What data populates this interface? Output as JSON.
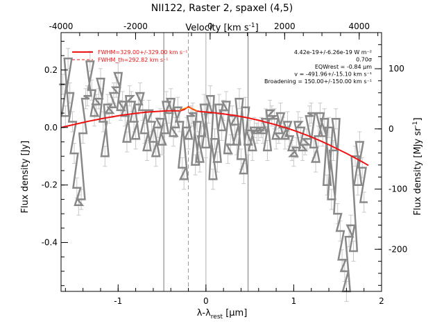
{
  "chart_data": {
    "type": "line",
    "title": "NII122, Raster 2, spaxel (4,5)",
    "xlabel": "λ-λrest [μm]",
    "xlabel_main": "λ-λ",
    "xlabel_sub": "rest",
    "xlabel_unit": " [μm]",
    "ylabel": "Flux density [Jy]",
    "top_xlabel": "Velocity [km s⁻¹]",
    "top_xlabel_main": "Velocity [km s",
    "top_xlabel_sup": "-1",
    "top_xlabel_end": "]",
    "right_ylabel": "Flux density [MJy sr⁻¹]",
    "right_ylabel_main": "Flux density [MJy sr",
    "right_ylabel_sup": "-1",
    "right_ylabel_end": "]",
    "xlim": [
      -1.65,
      2.0
    ],
    "ylim": [
      -0.57,
      0.33
    ],
    "top_xlim": [
      -4000,
      4600
    ],
    "right_ylim": [
      -270,
      160
    ],
    "xticks": [
      -1,
      0,
      1,
      2
    ],
    "yticks": [
      -0.4,
      -0.2,
      0.0,
      0.2
    ],
    "top_xticks": [
      -4000,
      -2000,
      0,
      2000,
      4000
    ],
    "right_yticks": [
      -200,
      -100,
      0,
      100
    ],
    "xtick_labels": [
      "-1",
      "0",
      "1",
      "2"
    ],
    "ytick_labels": [
      "-0.4",
      "-0.2",
      "0.0",
      "0.2"
    ],
    "top_xtick_labels": [
      "-4000",
      "-2000",
      "0",
      "2000",
      "4000"
    ],
    "right_ytick_labels": [
      "-200",
      "-100",
      "0",
      "100"
    ],
    "vertical_lines": [
      {
        "x": -0.48,
        "style": "solid",
        "color": "#777777"
      },
      {
        "x": -0.2,
        "style": "dashed",
        "color": "#999999"
      },
      {
        "x": 0.0,
        "style": "solid",
        "color": "#aaaaaa"
      },
      {
        "x": 0.48,
        "style": "solid",
        "color": "#777777"
      }
    ],
    "legend": [
      {
        "label": "FWHM=329.00+/-329.00 km s⁻¹",
        "style": "solid",
        "color": "#ee1111"
      },
      {
        "label": "FWHM_th=292.82 km s⁻¹",
        "style": "dashed",
        "color": "#ee1111"
      }
    ],
    "annotations": [
      "4.42e-19+/-6.26e-19 W m⁻²",
      "0.70σ",
      "EQWrest = -0.84 μm",
      "v = -491.96+/-15.10 km s⁻¹",
      "Broadening = 150.00+/-150.00 km s⁻¹"
    ],
    "series": [
      {
        "name": "Spectrum",
        "color": "#888888",
        "x": [
          -1.63,
          -1.6,
          -1.57,
          -1.55,
          -1.52,
          -1.5,
          -1.47,
          -1.45,
          -1.42,
          -1.4,
          -1.37,
          -1.35,
          -1.32,
          -1.3,
          -1.27,
          -1.25,
          -1.22,
          -1.2,
          -1.17,
          -1.15,
          -1.12,
          -1.1,
          -1.07,
          -1.05,
          -1.02,
          -1.0,
          -0.97,
          -0.95,
          -0.92,
          -0.9,
          -0.87,
          -0.85,
          -0.82,
          -0.8,
          -0.77,
          -0.75,
          -0.72,
          -0.7,
          -0.67,
          -0.65,
          -0.62,
          -0.6,
          -0.57,
          -0.55,
          -0.52,
          -0.5,
          -0.47,
          -0.45,
          -0.42,
          -0.4,
          -0.37,
          -0.35,
          -0.32,
          -0.3,
          -0.27,
          -0.25,
          -0.22,
          -0.2,
          -0.17,
          -0.15,
          -0.12,
          -0.1,
          -0.07,
          -0.05,
          -0.02,
          0.0,
          0.03,
          0.05,
          0.08,
          0.1,
          0.13,
          0.15,
          0.18,
          0.2,
          0.23,
          0.25,
          0.28,
          0.3,
          0.33,
          0.35,
          0.38,
          0.4,
          0.43,
          0.45,
          0.48,
          0.5,
          0.53,
          0.55,
          0.58,
          0.6,
          0.63,
          0.65,
          0.68,
          0.7,
          0.73,
          0.75,
          0.78,
          0.8,
          0.83,
          0.85,
          0.88,
          0.9,
          0.93,
          0.95,
          0.98,
          1.0,
          1.03,
          1.05,
          1.08,
          1.1,
          1.13,
          1.15,
          1.18,
          1.2,
          1.23,
          1.25,
          1.28,
          1.3,
          1.33,
          1.35,
          1.38,
          1.4,
          1.43,
          1.45,
          1.48,
          1.5,
          1.53,
          1.55,
          1.58,
          1.6,
          1.63,
          1.65,
          1.68,
          1.7,
          1.73,
          1.75,
          1.78,
          1.8
        ],
        "y": [
          0.15,
          0.04,
          0.24,
          0.12,
          0.02,
          -0.09,
          -0.21,
          -0.27,
          -0.25,
          -0.02,
          0.1,
          0.11,
          0.23,
          0.13,
          0.04,
          0.08,
          0.1,
          0.17,
          0.02,
          -0.1,
          0.08,
          0.05,
          0.07,
          0.12,
          0.14,
          0.19,
          0.06,
          0.09,
          0.04,
          -0.05,
          0.11,
          0.09,
          0.02,
          -0.04,
          0.08,
          0.12,
          0.06,
          -0.02,
          -0.08,
          0.06,
          0.02,
          -0.05,
          -0.1,
          0.0,
          0.03,
          -0.06,
          -0.02,
          0.09,
          0.05,
          0.1,
          -0.03,
          0.0,
          0.07,
          0.02,
          -0.14,
          -0.18,
          0.0,
          -0.04,
          0.04,
          0.05,
          -0.13,
          0.02,
          -0.12,
          -0.03,
          0.08,
          -0.07,
          0.05,
          0.11,
          -0.18,
          -0.04,
          -0.12,
          0.08,
          -0.01,
          0.06,
          0.09,
          -0.09,
          -0.06,
          0.04,
          0.01,
          -0.06,
          0.1,
          -0.11,
          -0.16,
          0.07,
          -0.06,
          -0.01,
          -0.08,
          0.0,
          -0.02,
          -0.01,
          0.0,
          -0.02,
          0.03,
          -0.08,
          0.06,
          0.04,
          0.03,
          -0.04,
          -0.02,
          0.05,
          0.0,
          -0.04,
          0.02,
          -0.03,
          -0.08,
          -0.1,
          -0.07,
          0.02,
          0.0,
          -0.08,
          -0.06,
          -0.04,
          0.04,
          0.05,
          -0.07,
          -0.12,
          -0.03,
          0.05,
          -0.03,
          0.03,
          -0.2,
          0.0,
          -0.25,
          -0.08,
          0.03,
          -0.3,
          -0.36,
          -0.46,
          -0.5,
          -0.57,
          -0.38,
          -0.34,
          -0.43,
          -0.1,
          -0.2,
          -0.05,
          -0.14,
          -0.26
        ]
      },
      {
        "name": "Fit",
        "color": "#ee1111",
        "x": [
          -1.65,
          -1.55,
          -1.45,
          -1.35,
          -1.25,
          -1.15,
          -1.05,
          -0.95,
          -0.85,
          -0.75,
          -0.65,
          -0.55,
          -0.45,
          -0.35,
          -0.3,
          -0.25,
          -0.2,
          -0.15,
          -0.1,
          -0.05,
          0.0,
          0.1,
          0.2,
          0.3,
          0.4,
          0.5,
          0.6,
          0.7,
          0.8,
          0.9,
          1.0,
          1.1,
          1.2,
          1.3,
          1.4,
          1.5,
          1.6,
          1.7,
          1.8,
          1.85
        ],
        "y": [
          0.0,
          0.007,
          0.014,
          0.021,
          0.027,
          0.033,
          0.038,
          0.043,
          0.047,
          0.051,
          0.054,
          0.056,
          0.058,
          0.058,
          0.058,
          0.062,
          0.072,
          0.064,
          0.057,
          0.055,
          0.054,
          0.051,
          0.047,
          0.043,
          0.038,
          0.032,
          0.025,
          0.017,
          0.009,
          0.0,
          -0.01,
          -0.021,
          -0.033,
          -0.046,
          -0.06,
          -0.075,
          -0.09,
          -0.106,
          -0.123,
          -0.132
        ]
      }
    ]
  }
}
